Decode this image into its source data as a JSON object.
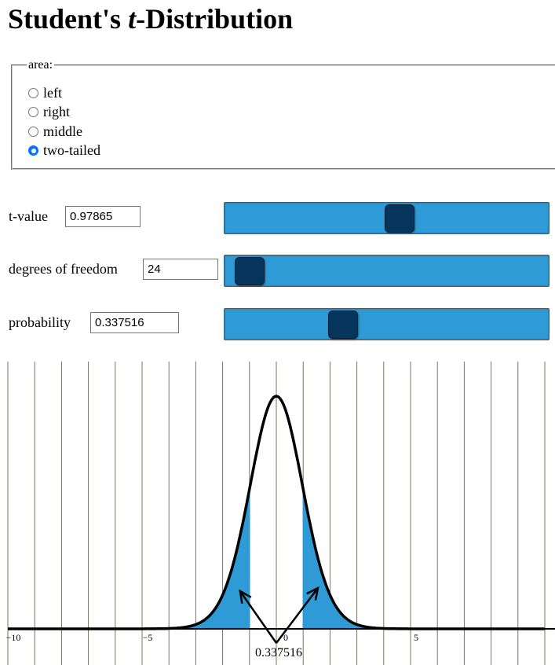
{
  "page": {
    "title_prefix": "Student's ",
    "title_var": "t",
    "title_suffix": "-Distribution"
  },
  "area": {
    "legend": "area:",
    "options": [
      {
        "label": "left",
        "checked": false
      },
      {
        "label": "right",
        "checked": false
      },
      {
        "label": "middle",
        "checked": false
      },
      {
        "label": "two-tailed",
        "checked": true
      }
    ]
  },
  "controls": {
    "t_value": {
      "label": "t-value",
      "value": "0.97865",
      "slider_fraction": 0.545
    },
    "df": {
      "label": "degrees of freedom",
      "value": "24",
      "slider_fraction": 0.03
    },
    "probability": {
      "label": "probability",
      "value": "0.337516",
      "slider_fraction": 0.35
    }
  },
  "colors": {
    "fill": "#2e9bd6",
    "thumb": "#05355d",
    "grid": "#777766",
    "curve": "#000000"
  },
  "chart_data": {
    "type": "area",
    "distribution": "student-t",
    "degrees_of_freedom": 24,
    "t_value": 0.97865,
    "shaded_region": "two-tailed",
    "xlim": [
      -10,
      10
    ],
    "x_tick_labels": [
      {
        "x": -10,
        "label": "−10"
      },
      {
        "x": -5,
        "label": "−5"
      },
      {
        "x": 0,
        "label": "0"
      },
      {
        "x": 5,
        "label": "5"
      }
    ],
    "grid_spacing": 1,
    "annotation": "0.337516"
  }
}
